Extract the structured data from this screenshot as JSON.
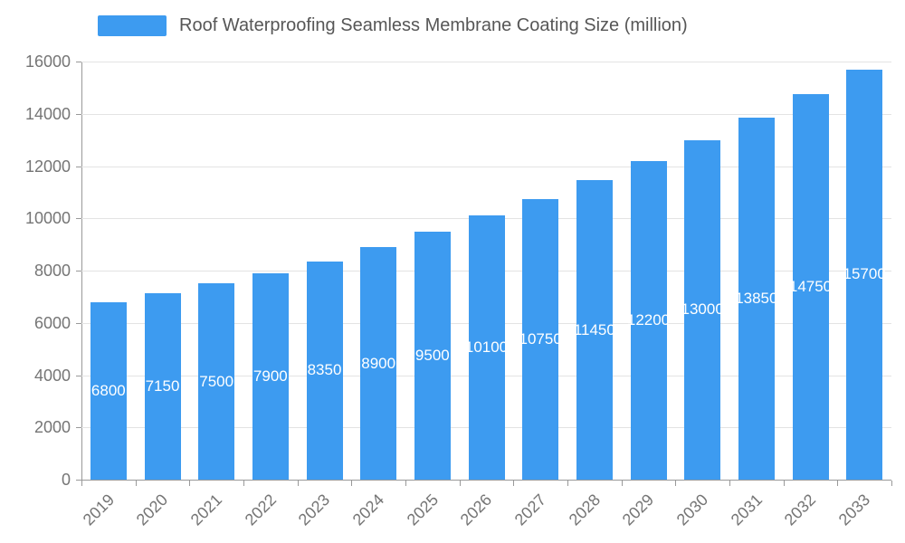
{
  "legend": {
    "label": "Roof Waterproofing Seamless Membrane Coating Size (million)"
  },
  "chart_data": {
    "type": "bar",
    "title": "Roof Waterproofing Seamless Membrane Coating Size (million)",
    "categories": [
      "2019",
      "2020",
      "2021",
      "2022",
      "2023",
      "2024",
      "2025",
      "2026",
      "2027",
      "2028",
      "2029",
      "2030",
      "2031",
      "2032",
      "2033"
    ],
    "values": [
      6800,
      7150,
      7500,
      7900,
      8350,
      8900,
      9500,
      10100,
      10750,
      11450,
      12200,
      13000,
      13850,
      14750,
      15700
    ],
    "xlabel": "",
    "ylabel": "",
    "ylim": [
      0,
      16000
    ],
    "ytick_step": 2000,
    "grid": true,
    "legend_position": "top",
    "bar_color": "#3d9bf0",
    "value_label_color": "#ffffff",
    "axis_color": "#999999",
    "grid_color": "#e3e3e3",
    "tick_label_color": "#757575"
  }
}
